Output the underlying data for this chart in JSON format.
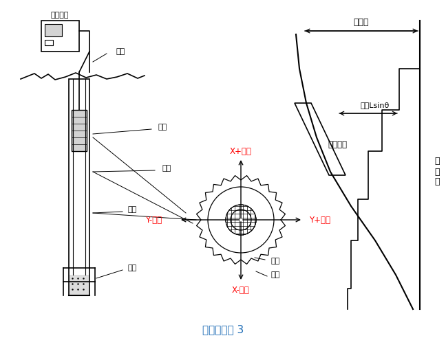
{
  "title": "测斜原理图 3",
  "title_color": "#1a6ab5",
  "bg_color": "#ffffff",
  "label_color": "#000000",
  "red_color": "#ff0000",
  "fig_width": 6.48,
  "fig_height": 5.08,
  "labels": {
    "device": "测读设备",
    "cable": "电缆",
    "probe": "测头",
    "borehole": "钻孔",
    "guide_tube": "导管",
    "backfill": "回填",
    "total_disp": "总位移",
    "disp_sin": "位移Lsinθ",
    "meas_dist": "测读间距",
    "baseline": "原\n准\n线",
    "guide_groove": "导槽",
    "guide_wheel": "导轮",
    "x_plus": "X+方向",
    "x_minus": "X-方向",
    "y_plus": "Y+方向",
    "y_minus": "Y-方向"
  }
}
